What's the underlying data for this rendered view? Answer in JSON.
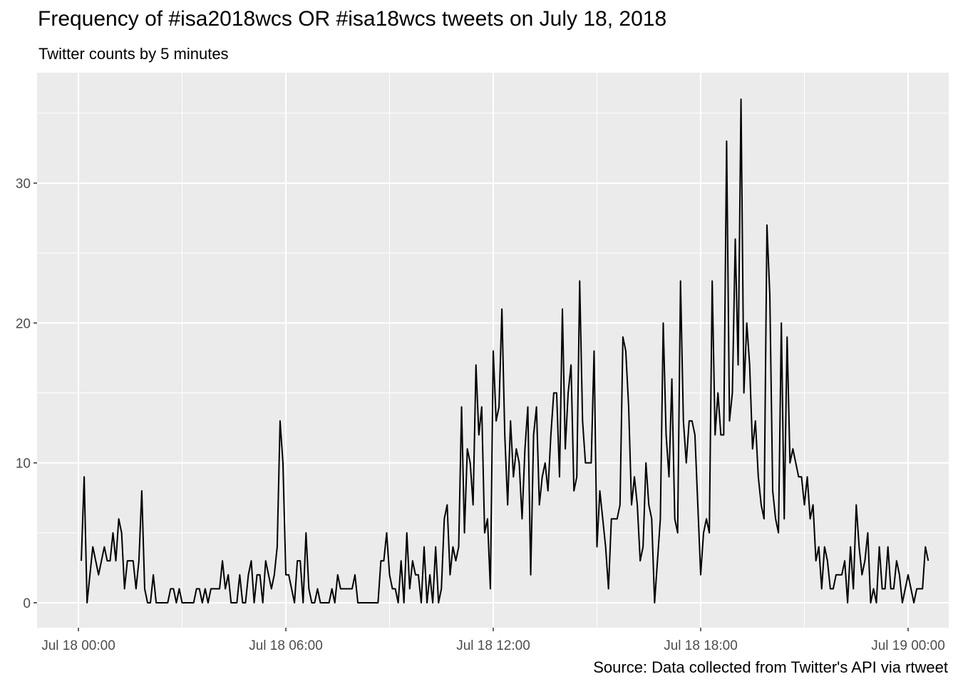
{
  "title": "Frequency of #isa2018wcs OR #isa18wcs tweets on July 18, 2018",
  "subtitle": "Twitter counts by 5 minutes",
  "caption": "Source: Data collected from Twitter's API via rtweet",
  "chart_data": {
    "type": "line",
    "xlabel": "",
    "ylabel": "",
    "x_unit": "5-minute intervals, July 18, 2018",
    "x_start": "2018-07-18 00:05",
    "x_step_minutes": 5,
    "xlim": [
      "2017-07-17 23:12",
      "2018-07-19 00:48"
    ],
    "ylim": [
      -1.8,
      37.2
    ],
    "x_ticks": [
      "Jul 18 00:00",
      "Jul 18 06:00",
      "Jul 18 12:00",
      "Jul 18 18:00",
      "Jul 19 00:00"
    ],
    "y_ticks": [
      "0",
      "10",
      "20",
      "30"
    ],
    "grid": true,
    "line_color": "#000000",
    "panel_color": "#ebebeb",
    "grid_color": "#ffffff",
    "series": [
      {
        "values": [
          3,
          9,
          0,
          2,
          4,
          3,
          2,
          3,
          4,
          3,
          3,
          5,
          3,
          6,
          5,
          1,
          3,
          3,
          3,
          1,
          3,
          8,
          1,
          0,
          0,
          2,
          0,
          0,
          0,
          0,
          0,
          1,
          1,
          0,
          1,
          0,
          0,
          0,
          0,
          0,
          1,
          1,
          0,
          1,
          0,
          1,
          1,
          1,
          1,
          3,
          1,
          2,
          0,
          0,
          0,
          2,
          0,
          0,
          2,
          3,
          0,
          2,
          2,
          0,
          3,
          2,
          1,
          2,
          4,
          13,
          10,
          2,
          2,
          1,
          0,
          3,
          3,
          0,
          5,
          1,
          0,
          0,
          1,
          0,
          0,
          0,
          0,
          1,
          0,
          2,
          1,
          1,
          1,
          1,
          1,
          2,
          0,
          0,
          0,
          0,
          0,
          0,
          0,
          0,
          3,
          3,
          5,
          2,
          1,
          1,
          0,
          3,
          0,
          5,
          1,
          3,
          2,
          2,
          0,
          4,
          0,
          2,
          0,
          4,
          0,
          1,
          6,
          7,
          2,
          4,
          3,
          4,
          14,
          5,
          11,
          10,
          7,
          17,
          12,
          14,
          5,
          6,
          1,
          18,
          13,
          14,
          21,
          12,
          7,
          13,
          9,
          11,
          10,
          6,
          11,
          14,
          2,
          12,
          14,
          7,
          9,
          10,
          8,
          12,
          15,
          15,
          9,
          21,
          11,
          15,
          17,
          8,
          9,
          23,
          13,
          10,
          10,
          10,
          18,
          4,
          8,
          6,
          4,
          1,
          6,
          6,
          6,
          7,
          19,
          18,
          14,
          7,
          9,
          7,
          3,
          4,
          10,
          7,
          6,
          0,
          3,
          6,
          20,
          12,
          9,
          16,
          6,
          5,
          23,
          13,
          10,
          13,
          13,
          12,
          7,
          2,
          5,
          6,
          5,
          23,
          12,
          15,
          12,
          12,
          33,
          13,
          15,
          26,
          17,
          36,
          15,
          20,
          17,
          11,
          13,
          9,
          7,
          6,
          27,
          22,
          8,
          6,
          5,
          20,
          6,
          19,
          10,
          11,
          10,
          9,
          9,
          7,
          9,
          6,
          7,
          3,
          4,
          1,
          4,
          3,
          1,
          1,
          2,
          2,
          2,
          3,
          0,
          4,
          1,
          7,
          4,
          2,
          3,
          5,
          0,
          1,
          0,
          4,
          1,
          1,
          4,
          1,
          1,
          3,
          2,
          0,
          1,
          2,
          1,
          0,
          1,
          1,
          1,
          4,
          3
        ]
      }
    ]
  }
}
